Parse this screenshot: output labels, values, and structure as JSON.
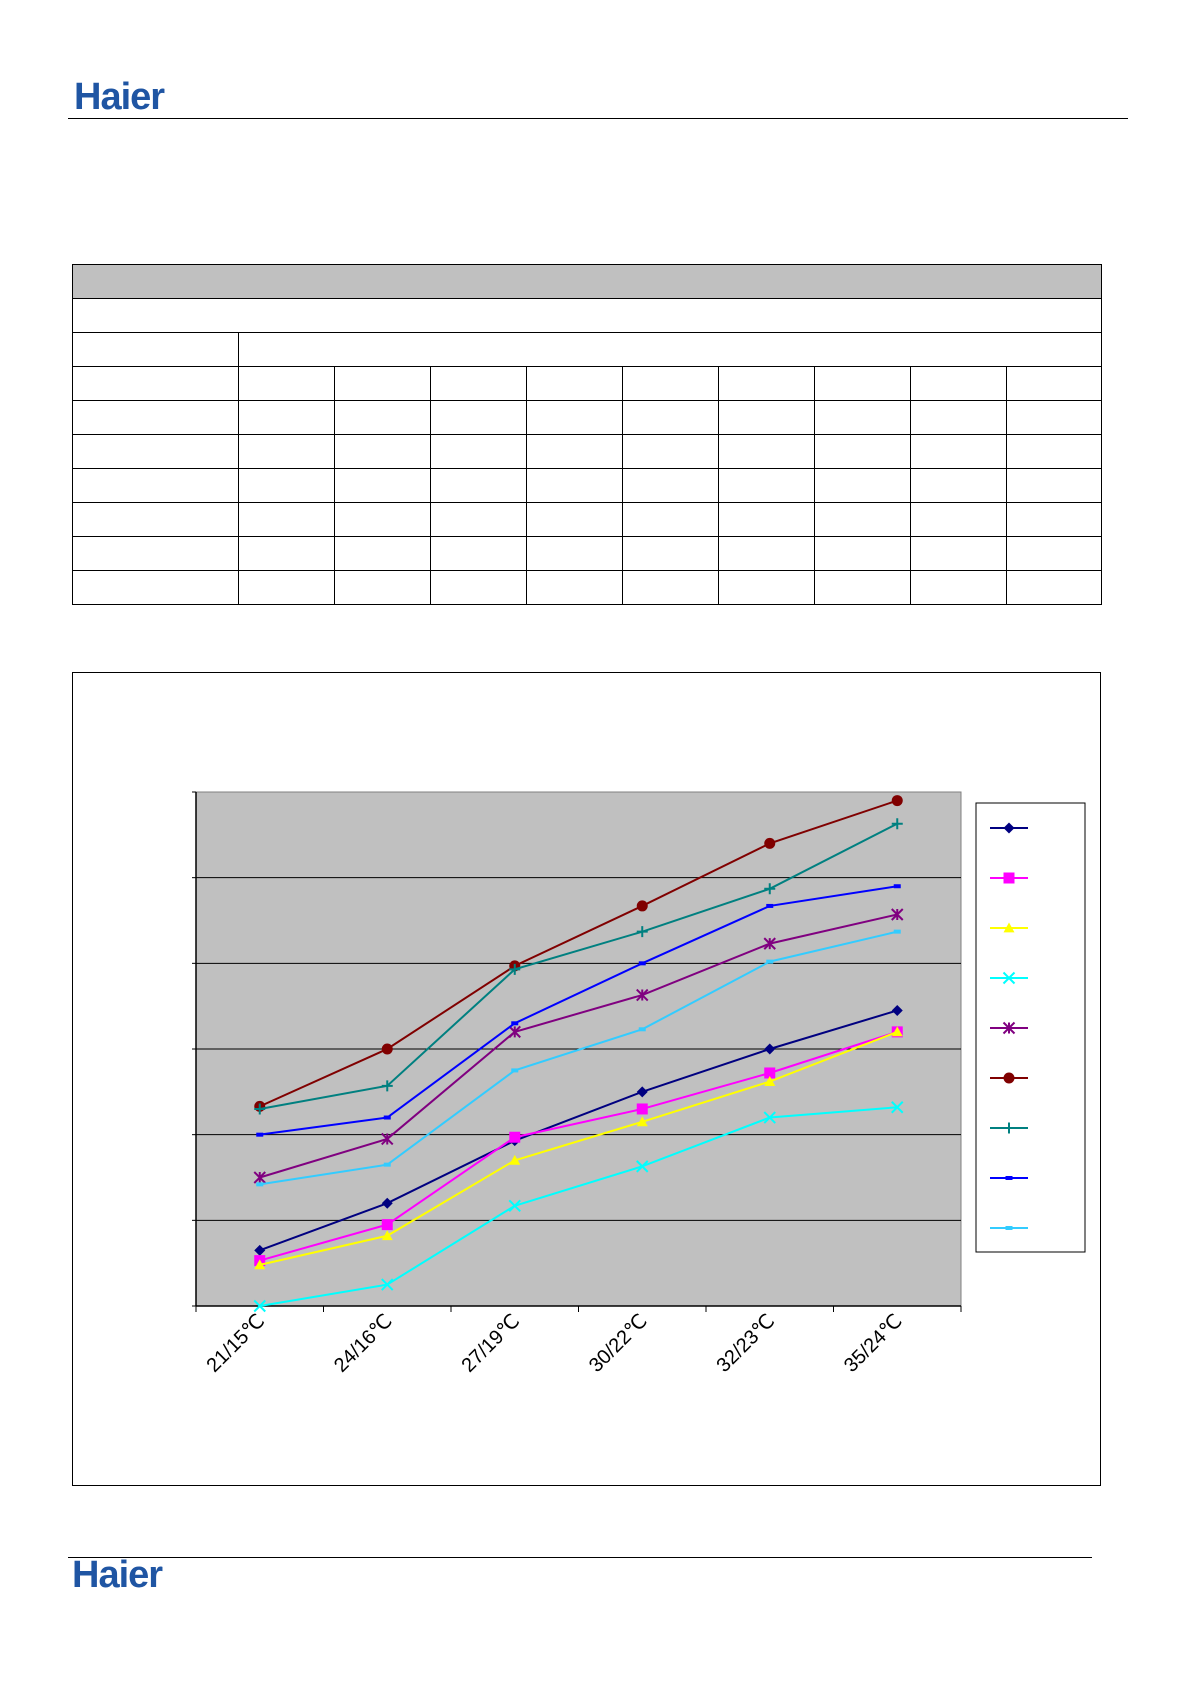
{
  "header": {
    "logo_text": "Haier"
  },
  "footer": {
    "logo_text": "Haier"
  },
  "table": {
    "rows": 10,
    "cols": 10
  },
  "chart_data": {
    "type": "line",
    "categories": [
      "21/15℃",
      "24/16℃",
      "27/19℃",
      "30/22℃",
      "32/23℃",
      "35/24℃"
    ],
    "ylim": [
      0,
      6
    ],
    "grid": true,
    "legend": "right",
    "series": [
      {
        "values": [
          0.65,
          1.2,
          1.93,
          2.5,
          3.0,
          3.45
        ],
        "color": "#000080",
        "marker": "diamond"
      },
      {
        "values": [
          0.53,
          0.95,
          1.97,
          2.3,
          2.72,
          3.2
        ],
        "color": "#ff00ff",
        "marker": "square"
      },
      {
        "values": [
          0.48,
          0.82,
          1.7,
          2.15,
          2.62,
          3.2
        ],
        "color": "#ffff00",
        "marker": "triangle"
      },
      {
        "values": [
          0.0,
          0.25,
          1.17,
          1.63,
          2.2,
          2.32
        ],
        "color": "#00ffff",
        "marker": "x"
      },
      {
        "values": [
          1.5,
          1.95,
          3.2,
          3.63,
          4.23,
          4.57
        ],
        "color": "#800080",
        "marker": "star"
      },
      {
        "values": [
          2.33,
          3.0,
          3.97,
          4.67,
          5.4,
          5.9
        ],
        "color": "#800000",
        "marker": "circle"
      },
      {
        "values": [
          2.3,
          2.57,
          3.93,
          4.37,
          4.87,
          5.63
        ],
        "color": "#008080",
        "marker": "plus"
      },
      {
        "values": [
          2.0,
          2.2,
          3.3,
          4.0,
          4.67,
          4.9
        ],
        "color": "#0000ff",
        "marker": "dash"
      },
      {
        "values": [
          1.42,
          1.65,
          2.75,
          3.23,
          4.02,
          4.37
        ],
        "color": "#33ccff",
        "marker": "dash"
      }
    ]
  }
}
